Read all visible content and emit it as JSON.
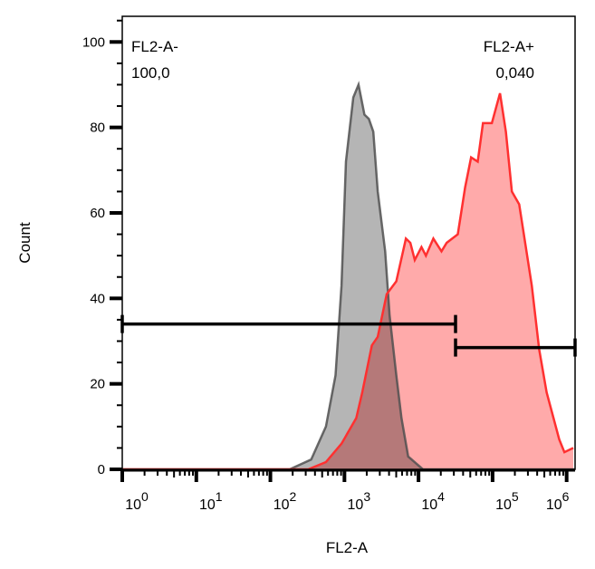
{
  "chart_data": {
    "type": "area",
    "xlabel": "FL2-A",
    "ylabel": "Count",
    "xscale": "log",
    "xlim": [
      1,
      1300000
    ],
    "ylim": [
      0,
      106
    ],
    "grid": false,
    "x_tick_labels": [
      {
        "base": "10",
        "exp": "0",
        "value": 1
      },
      {
        "base": "10",
        "exp": "1",
        "value": 10
      },
      {
        "base": "10",
        "exp": "2",
        "value": 100
      },
      {
        "base": "10",
        "exp": "3",
        "value": 1000
      },
      {
        "base": "10",
        "exp": "4",
        "value": 10000
      },
      {
        "base": "10",
        "exp": "5",
        "value": 100000
      },
      {
        "base": "10",
        "exp": "6",
        "value": 1000000
      }
    ],
    "y_tick_labels": [
      "0",
      "20",
      "40",
      "60",
      "80",
      "100"
    ],
    "y_ticks": [
      0,
      20,
      40,
      60,
      80,
      100
    ],
    "series": [
      {
        "color_fill": "#b5b5b5",
        "color_line": "#505050",
        "x": [
          1,
          182,
          355,
          562,
          759,
          912,
          1047,
          1318,
          1549,
          1862,
          2138,
          2455,
          2818,
          3548,
          4074,
          5012,
          5888,
          7244,
          11482,
          1300000
        ],
        "y": [
          0,
          0,
          2.3,
          10,
          22,
          43,
          72,
          87,
          90,
          83,
          82,
          79,
          65,
          51,
          36,
          22,
          12,
          3,
          0,
          0
        ]
      },
      {
        "color_fill": "#ffaaaa",
        "color_line": "#ff3030",
        "x": [
          1,
          324,
          562,
          912,
          1445,
          1738,
          2344,
          2818,
          3715,
          5012,
          6761,
          7762,
          8913,
          10965,
          12589,
          15849,
          20417,
          23988,
          33884,
          42658,
          51286,
          63096,
          74131,
          97724,
          125893,
          151356,
          181970,
          229087,
          338844,
          426580,
          537032,
          794328,
          933254,
          1230269
        ],
        "y": [
          0,
          0,
          1.7,
          6,
          12,
          18,
          29,
          31,
          41,
          44,
          54,
          53,
          49,
          52,
          50,
          54,
          51,
          53,
          55,
          66,
          73,
          72,
          81,
          81,
          88,
          79,
          65,
          62,
          43,
          28,
          18,
          7,
          4,
          5
        ]
      }
    ],
    "gates": [
      {
        "name": "FL2-A-",
        "value": "100,0",
        "x_range": [
          1,
          31623
        ],
        "y": 34
      },
      {
        "name": "FL2-A+",
        "value": "0,040",
        "x_range": [
          31623,
          1300000
        ],
        "y": 28.5
      }
    ]
  }
}
